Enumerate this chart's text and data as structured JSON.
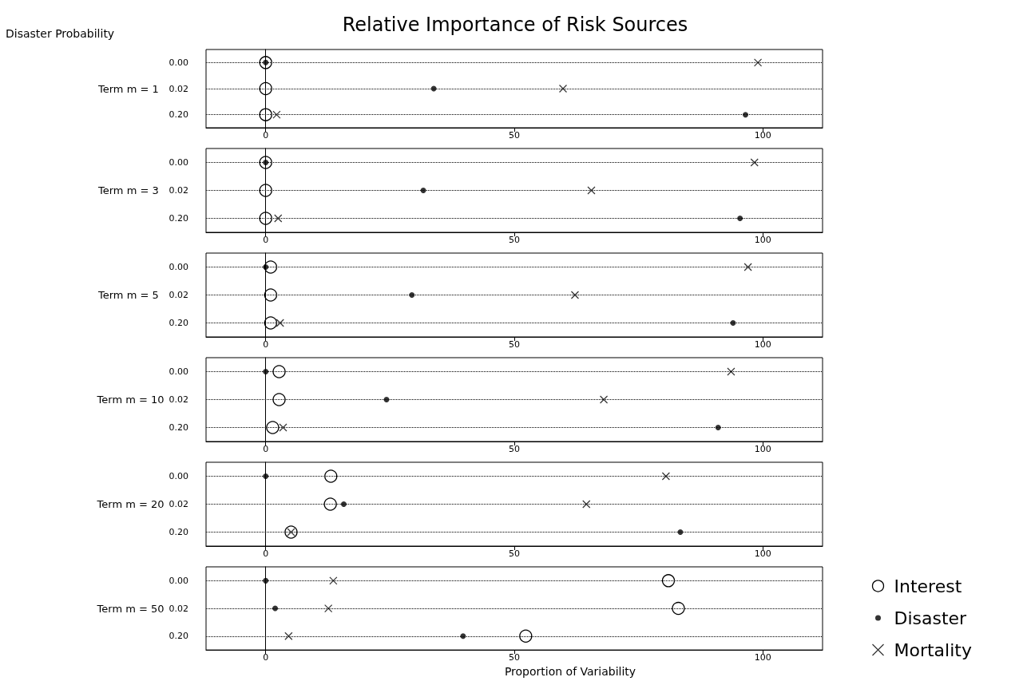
{
  "chart_data": [
    {
      "type": "scatter",
      "orientation": "horizontal",
      "title": "Relative Importance of Risk Sources",
      "subtitle": "Disaster Probability",
      "ylabel": "Term m = 1",
      "categories": [
        "0.00",
        "0.02",
        "0.20"
      ],
      "xlim": [
        -12,
        112
      ],
      "xticks": [
        0,
        50,
        100
      ],
      "grid": "y",
      "legend": false,
      "series": [
        {
          "marker": "circle",
          "color": "#000000",
          "values": [
            0,
            0,
            0
          ]
        },
        {
          "marker": "dot",
          "color": "#000000",
          "values": [
            0,
            33.8,
            96.5
          ]
        },
        {
          "marker": "cross",
          "color": "#000000",
          "values": [
            99,
            59.8,
            2.2
          ]
        }
      ]
    },
    {
      "type": "scatter",
      "orientation": "horizontal",
      "ylabel": "Term m = 3",
      "categories": [
        "0.00",
        "0.02",
        "0.20"
      ],
      "xlim": [
        -12,
        112
      ],
      "xticks": [
        0,
        50,
        100
      ],
      "grid": "y",
      "legend": false,
      "series": [
        {
          "marker": "circle",
          "color": "#000000",
          "values": [
            0,
            0,
            0
          ]
        },
        {
          "marker": "dot",
          "color": "#000000",
          "values": [
            0,
            31.7,
            95.4
          ]
        },
        {
          "marker": "cross",
          "color": "#000000",
          "values": [
            98.3,
            65.5,
            2.5
          ]
        }
      ]
    },
    {
      "type": "scatter",
      "orientation": "horizontal",
      "ylabel": "Term m = 5",
      "categories": [
        "0.00",
        "0.02",
        "0.20"
      ],
      "xlim": [
        -12,
        112
      ],
      "xticks": [
        0,
        50,
        100
      ],
      "grid": "y",
      "legend": false,
      "series": [
        {
          "marker": "circle",
          "color": "#000000",
          "values": [
            1,
            1,
            1
          ]
        },
        {
          "marker": "dot",
          "color": "#000000",
          "values": [
            0,
            29.4,
            94
          ]
        },
        {
          "marker": "cross",
          "color": "#000000",
          "values": [
            97,
            62.2,
            2.9
          ]
        }
      ]
    },
    {
      "type": "scatter",
      "orientation": "horizontal",
      "ylabel": "Term m = 10",
      "categories": [
        "0.00",
        "0.02",
        "0.20"
      ],
      "xlim": [
        -12,
        112
      ],
      "xticks": [
        0,
        50,
        100
      ],
      "grid": "y",
      "legend": false,
      "series": [
        {
          "marker": "circle",
          "color": "#000000",
          "values": [
            2.7,
            2.7,
            1.4
          ]
        },
        {
          "marker": "dot",
          "color": "#000000",
          "values": [
            0,
            24.3,
            91
          ]
        },
        {
          "marker": "cross",
          "color": "#000000",
          "values": [
            93.6,
            68,
            3.5
          ]
        }
      ]
    },
    {
      "type": "scatter",
      "orientation": "horizontal",
      "ylabel": "Term m = 20",
      "categories": [
        "0.00",
        "0.02",
        "0.20"
      ],
      "xlim": [
        -12,
        112
      ],
      "xticks": [
        0,
        50,
        100
      ],
      "grid": "y",
      "legend": false,
      "series": [
        {
          "marker": "circle",
          "color": "#000000",
          "values": [
            13.1,
            13,
            5.1
          ]
        },
        {
          "marker": "dot",
          "color": "#000000",
          "values": [
            0,
            15.7,
            83.4
          ]
        },
        {
          "marker": "cross",
          "color": "#000000",
          "values": [
            80.5,
            64.5,
            5.1
          ]
        }
      ]
    },
    {
      "type": "scatter",
      "orientation": "horizontal",
      "ylabel": "Term m = 50",
      "xlabel": "Proportion of Variability",
      "categories": [
        "0.00",
        "0.02",
        "0.20"
      ],
      "xlim": [
        -12,
        112
      ],
      "xticks": [
        0,
        50,
        100
      ],
      "grid": "y",
      "legend": "right",
      "series": [
        {
          "name": "Interest",
          "marker": "circle",
          "color": "#000000",
          "values": [
            81,
            83,
            52.3
          ]
        },
        {
          "name": "Disaster",
          "marker": "dot",
          "color": "#000000",
          "values": [
            0,
            1.9,
            39.7
          ]
        },
        {
          "name": "Mortality",
          "marker": "cross",
          "color": "#000000",
          "values": [
            13.6,
            12.6,
            4.6
          ]
        }
      ]
    }
  ]
}
